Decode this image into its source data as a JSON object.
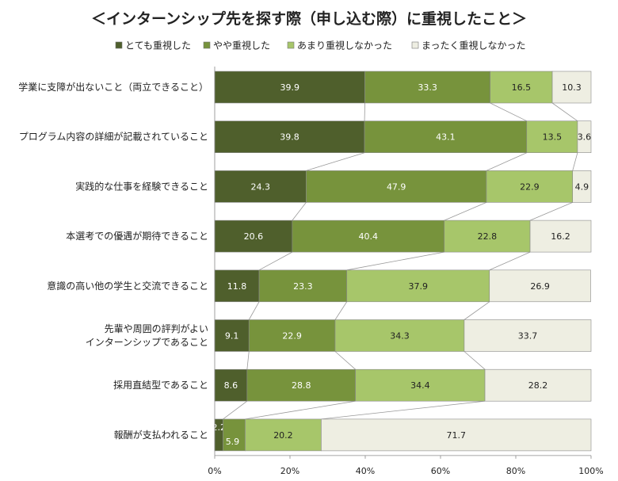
{
  "chart_data": {
    "type": "bar",
    "orientation": "horizontal",
    "stacked": "percent",
    "title": "＜インターンシップ先を探す際（申し込む際）に重視したこと＞",
    "categories": [
      [
        "学業に支障が出ないこと（両立できること）"
      ],
      [
        "プログラム内容の詳細が記載されていること"
      ],
      [
        "実践的な仕事を経験できること"
      ],
      [
        "本選考での優遇が期待できること"
      ],
      [
        "意識の高い他の学生と交流できること"
      ],
      [
        "先輩や周囲の評判がよい",
        "インターンシップであること"
      ],
      [
        "採用直結型であること"
      ],
      [
        "報酬が支払われること"
      ]
    ],
    "series": [
      {
        "name": "とても重視した",
        "color": "#4f5f2c",
        "text_color": "#ffffff",
        "values": [
          39.9,
          39.8,
          24.3,
          20.6,
          11.8,
          9.1,
          8.6,
          2.2
        ]
      },
      {
        "name": "やや重視した",
        "color": "#77933c",
        "text_color": "#ffffff",
        "values": [
          33.3,
          43.1,
          47.9,
          40.4,
          23.3,
          22.9,
          28.8,
          5.9
        ]
      },
      {
        "name": "あまり重視しなかった",
        "color": "#a7c66a",
        "text_color": "#222222",
        "values": [
          16.5,
          13.5,
          22.9,
          22.8,
          37.9,
          34.3,
          34.4,
          20.2
        ]
      },
      {
        "name": "まったく重視しなかった",
        "color": "#eeeee2",
        "text_color": "#222222",
        "values": [
          10.3,
          3.6,
          4.9,
          16.2,
          26.9,
          33.7,
          28.2,
          71.7
        ]
      }
    ],
    "xlim": [
      0,
      100
    ],
    "x_ticks": [
      "0%",
      "20%",
      "40%",
      "60%",
      "80%",
      "100%"
    ],
    "legend": "top",
    "series_lines": true,
    "grid": false
  }
}
